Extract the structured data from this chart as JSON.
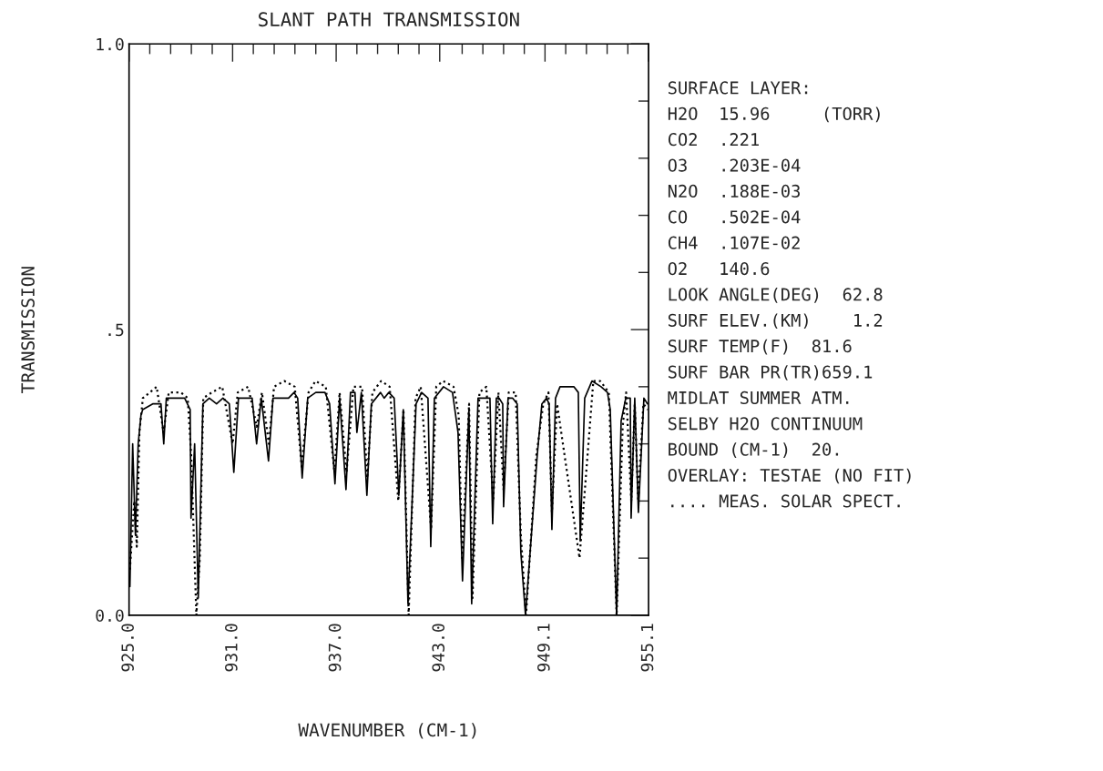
{
  "chart_data": {
    "type": "line",
    "title": "SLANT PATH TRANSMISSION",
    "xlabel": "WAVENUMBER (CM-1)",
    "ylabel": "TRANSMISSION",
    "xlim": [
      925.0,
      955.1
    ],
    "ylim": [
      0,
      1
    ],
    "xticks": [
      {
        "value": 925.0,
        "label": "925.0"
      },
      {
        "value": 926.2,
        "label": null
      },
      {
        "value": 927.41,
        "label": null
      },
      {
        "value": 928.61,
        "label": null
      },
      {
        "value": 929.82,
        "label": null
      },
      {
        "value": 931.0,
        "label": "931.0"
      },
      {
        "value": 932.2,
        "label": null
      },
      {
        "value": 933.41,
        "label": null
      },
      {
        "value": 934.61,
        "label": null
      },
      {
        "value": 935.82,
        "label": null
      },
      {
        "value": 937.0,
        "label": "937.0"
      },
      {
        "value": 938.2,
        "label": null
      },
      {
        "value": 939.4,
        "label": null
      },
      {
        "value": 940.6,
        "label": null
      },
      {
        "value": 941.8,
        "label": null
      },
      {
        "value": 943.0,
        "label": "943.0"
      },
      {
        "value": 944.3,
        "label": null
      },
      {
        "value": 945.5,
        "label": null
      },
      {
        "value": 946.7,
        "label": null
      },
      {
        "value": 947.9,
        "label": null
      },
      {
        "value": 949.1,
        "label": "949.1"
      },
      {
        "value": 950.3,
        "label": null
      },
      {
        "value": 951.5,
        "label": null
      },
      {
        "value": 952.7,
        "label": null
      },
      {
        "value": 953.9,
        "label": null
      },
      {
        "value": 955.1,
        "label": "955.1"
      }
    ],
    "yticks": [
      {
        "value": 0,
        "label": "0.0"
      },
      {
        "value": 0.1,
        "label": null
      },
      {
        "value": 0.2,
        "label": null
      },
      {
        "value": 0.3,
        "label": null
      },
      {
        "value": 0.4,
        "label": null
      },
      {
        "value": 0.5,
        "label": ".5"
      },
      {
        "value": 0.6,
        "label": null
      },
      {
        "value": 0.7,
        "label": null
      },
      {
        "value": 0.8,
        "label": null
      },
      {
        "value": 0.9,
        "label": null
      },
      {
        "value": 1,
        "label": "1.0"
      }
    ],
    "grid": false,
    "series": [
      {
        "color": "#000000",
        "line_style": "solid",
        "x": [
          925.05,
          925.21,
          925.37,
          925.53,
          925.69,
          925.79,
          926.37,
          926.85,
          927.01,
          927.16,
          927.43,
          928.22,
          928.54,
          928.59,
          928.8,
          929.01,
          929.28,
          929.65,
          930.07,
          930.44,
          930.81,
          931.07,
          931.34,
          931.76,
          932.13,
          932.39,
          932.66,
          933.08,
          933.34,
          933.98,
          934.24,
          934.56,
          934.77,
          935.03,
          935.35,
          935.82,
          936.35,
          936.62,
          936.93,
          937.2,
          937.57,
          937.83,
          938.09,
          938.2,
          938.46,
          938.78,
          939.04,
          939.57,
          939.78,
          940.05,
          940.36,
          940.63,
          940.89,
          941.16,
          941.63,
          941.95,
          942.32,
          942.48,
          942.69,
          943.22,
          943.74,
          944.06,
          944.32,
          944.69,
          944.85,
          945.22,
          945.64,
          945.91,
          946.07,
          946.28,
          946.44,
          946.65,
          946.7,
          946.96,
          947.23,
          947.49,
          947.7,
          947.97,
          948.65,
          948.92,
          949.18,
          949.34,
          949.5,
          949.71,
          949.97,
          950.77,
          951.03,
          951.14,
          951.4,
          951.82,
          952.35,
          952.72,
          952.88,
          953.25,
          953.51,
          953.78,
          954.04,
          954.09,
          954.3,
          954.51,
          954.83,
          955.04
        ],
        "values": [
          0.05,
          0.3,
          0.14,
          0.3,
          0.35,
          0.36,
          0.37,
          0.37,
          0.3,
          0.38,
          0.38,
          0.38,
          0.36,
          0.17,
          0.3,
          0.03,
          0.37,
          0.38,
          0.37,
          0.38,
          0.37,
          0.25,
          0.38,
          0.38,
          0.38,
          0.3,
          0.38,
          0.27,
          0.38,
          0.38,
          0.38,
          0.39,
          0.38,
          0.24,
          0.38,
          0.39,
          0.39,
          0.37,
          0.23,
          0.38,
          0.22,
          0.39,
          0.39,
          0.32,
          0.39,
          0.21,
          0.37,
          0.39,
          0.38,
          0.39,
          0.38,
          0.21,
          0.36,
          0.02,
          0.37,
          0.39,
          0.38,
          0.12,
          0.38,
          0.4,
          0.39,
          0.32,
          0.06,
          0.36,
          0.02,
          0.38,
          0.38,
          0.38,
          0.16,
          0.38,
          0.38,
          0.37,
          0.19,
          0.38,
          0.38,
          0.37,
          0.11,
          0.0,
          0.28,
          0.37,
          0.38,
          0.37,
          0.15,
          0.38,
          0.4,
          0.4,
          0.39,
          0.13,
          0.38,
          0.41,
          0.4,
          0.39,
          0.36,
          0.0,
          0.34,
          0.38,
          0.38,
          0.17,
          0.38,
          0.18,
          0.38,
          0.37
        ]
      },
      {
        "color": "#000000",
        "line_style": "dotted",
        "x": [
          925.05,
          925.3,
          925.45,
          925.6,
          925.8,
          926.2,
          926.6,
          927.0,
          927.3,
          928.0,
          928.4,
          928.6,
          928.9,
          929.1,
          929.3,
          929.8,
          930.4,
          931.0,
          931.3,
          931.9,
          932.4,
          932.7,
          933.1,
          933.4,
          934.0,
          934.6,
          935.0,
          935.4,
          935.8,
          936.4,
          936.9,
          937.2,
          937.6,
          938.0,
          938.5,
          938.8,
          939.1,
          939.6,
          940.1,
          940.6,
          940.9,
          941.2,
          941.6,
          941.9,
          942.5,
          942.8,
          943.2,
          943.8,
          944.1,
          944.3,
          944.7,
          944.9,
          945.3,
          945.7,
          946.1,
          946.4,
          946.7,
          947.0,
          947.4,
          947.7,
          948.0,
          948.6,
          949.0,
          949.3,
          949.5,
          949.8,
          951.1,
          951.9,
          952.3,
          952.8,
          953.25,
          953.6,
          953.8,
          954.1,
          954.3,
          954.5,
          954.8,
          955.05
        ],
        "values": [
          0.08,
          0.2,
          0.12,
          0.32,
          0.38,
          0.39,
          0.4,
          0.32,
          0.39,
          0.39,
          0.38,
          0.28,
          0.0,
          0.1,
          0.38,
          0.39,
          0.4,
          0.3,
          0.39,
          0.4,
          0.33,
          0.39,
          0.3,
          0.4,
          0.41,
          0.4,
          0.26,
          0.39,
          0.41,
          0.4,
          0.25,
          0.39,
          0.25,
          0.4,
          0.4,
          0.24,
          0.39,
          0.41,
          0.4,
          0.2,
          0.36,
          0.0,
          0.38,
          0.4,
          0.15,
          0.4,
          0.41,
          0.4,
          0.35,
          0.1,
          0.37,
          0.03,
          0.39,
          0.4,
          0.2,
          0.39,
          0.22,
          0.39,
          0.39,
          0.14,
          0.0,
          0.28,
          0.37,
          0.39,
          0.18,
          0.37,
          0.1,
          0.41,
          0.41,
          0.39,
          0.0,
          0.33,
          0.39,
          0.2,
          0.37,
          0.2,
          0.37,
          0.36
        ]
      }
    ],
    "annotations": [
      "SURFACE LAYER:",
      "H2O  15.96     (TORR)",
      "CO2  .221",
      "O3   .203E-04",
      "N2O  .188E-03",
      "CO   .502E-04",
      "CH4  .107E-02",
      "O2   140.6",
      "LOOK ANGLE(DEG)  62.8",
      "SURF ELEV.(KM)    1.2",
      "SURF TEMP(F)  81.6",
      "SURF BAR PR(TR)659.1",
      "MIDLAT SUMMER ATM.",
      "SELBY H2O CONTINUUM",
      "BOUND (CM-1)  20.",
      "OVERLAY: TESTAE (NO FIT)",
      ".... MEAS. SOLAR SPECT."
    ]
  }
}
